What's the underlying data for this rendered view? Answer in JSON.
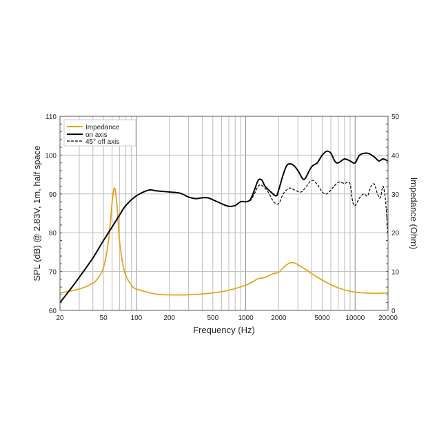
{
  "chart_data": {
    "type": "line",
    "title": "",
    "xlabel": "Frequency (Hz)",
    "ylabel": "SPL (dB) @ 2.83V, 1m, half space",
    "y2label": "Impedance (Ohm)",
    "xscale": "log",
    "xlim": [
      20,
      20000
    ],
    "ylim": [
      60,
      110
    ],
    "y2lim": [
      0,
      50
    ],
    "grid": true,
    "legend_position": "top-left",
    "xticks": [
      "20",
      "50",
      "100",
      "200",
      "500",
      "1000",
      "2000",
      "5000",
      "10000",
      "20000"
    ],
    "yticks": [
      "60",
      "70",
      "80",
      "90",
      "100",
      "110"
    ],
    "y2ticks": [
      "0",
      "10",
      "20",
      "30",
      "40",
      "50"
    ],
    "series": [
      {
        "name": "Impedance",
        "axis": "right",
        "color": "#e8a31c",
        "style": "solid",
        "x": [
          20,
          30,
          40,
          45,
          50,
          55,
          58,
          60,
          62,
          63,
          64,
          66,
          68,
          70,
          75,
          80,
          90,
          100,
          150,
          200,
          300,
          500,
          700,
          1000,
          1200,
          1300,
          1500,
          1800,
          2000,
          2300,
          2600,
          3000,
          4000,
          5000,
          7000,
          10000,
          15000,
          20000
        ],
        "y": [
          4.5,
          5.5,
          7,
          8.5,
          11,
          17,
          23,
          28,
          31,
          31.5,
          31,
          28,
          23,
          18,
          12,
          9,
          6.5,
          5.5,
          4.2,
          4,
          4,
          4.5,
          5.2,
          6.5,
          7.6,
          8.2,
          8.5,
          9.5,
          9.8,
          11.5,
          12.3,
          11.8,
          9.5,
          7.8,
          5.8,
          4.7,
          4.4,
          4.5
        ]
      },
      {
        "name": "on axis",
        "axis": "left",
        "color": "#000000",
        "style": "solid",
        "x": [
          20,
          25,
          30,
          40,
          50,
          60,
          70,
          80,
          100,
          130,
          150,
          200,
          250,
          300,
          350,
          400,
          450,
          500,
          600,
          700,
          800,
          900,
          1000,
          1100,
          1200,
          1300,
          1400,
          1500,
          1700,
          1900,
          2000,
          2200,
          2400,
          2700,
          3000,
          3300,
          3500,
          4000,
          4500,
          5000,
          5500,
          6000,
          6500,
          7000,
          8000,
          9000,
          10000,
          11000,
          13000,
          15000,
          16500,
          18000,
          20000
        ],
        "y": [
          62,
          65.5,
          68.5,
          73.5,
          78,
          81.5,
          84.5,
          87,
          89.5,
          91,
          90.8,
          90.5,
          90.2,
          89.2,
          88.8,
          89,
          89,
          88.5,
          87.5,
          86.8,
          87,
          88,
          88,
          88.5,
          91,
          93.5,
          93.6,
          92,
          90.5,
          89.5,
          91,
          95,
          97.5,
          97.5,
          96,
          94,
          94,
          97,
          98,
          100,
          101,
          100.5,
          98.5,
          98,
          99,
          98.5,
          98,
          100,
          100.5,
          99.5,
          98.5,
          99,
          98.5
        ]
      },
      {
        "name": "45° off axis",
        "axis": "left",
        "color": "#000000",
        "style": "dashed",
        "x": [
          1000,
          1100,
          1200,
          1300,
          1400,
          1600,
          1800,
          2000,
          2200,
          2500,
          2800,
          3200,
          3600,
          4000,
          4500,
          5000,
          5500,
          6000,
          7000,
          8000,
          8500,
          9000,
          9500,
          10000,
          11000,
          12000,
          13000,
          14000,
          15000,
          16000,
          17000,
          18000,
          19000,
          20000
        ],
        "y": [
          88,
          88.3,
          90,
          92,
          92.2,
          90.5,
          88,
          87.5,
          90,
          91.5,
          91,
          90.5,
          92,
          93.5,
          92.5,
          90.5,
          90,
          91,
          93,
          92.7,
          93,
          92.5,
          88,
          87,
          89,
          90,
          89.5,
          92,
          92.5,
          90,
          89,
          92,
          88,
          79
        ]
      }
    ]
  }
}
